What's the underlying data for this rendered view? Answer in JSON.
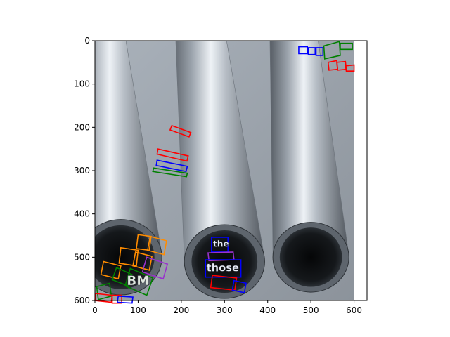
{
  "chart_data": {
    "type": "image",
    "title": "",
    "xlabel": "",
    "ylabel": "",
    "xlim": [
      0,
      630
    ],
    "ylim": [
      600,
      0
    ],
    "xticks": [
      0,
      100,
      200,
      300,
      400,
      500,
      600
    ],
    "yticks": [
      0,
      100,
      200,
      300,
      400,
      500,
      600
    ],
    "image_extent": [
      0,
      600,
      600,
      0
    ],
    "background_subject": "photo of grey steel pipes",
    "colors": {
      "red": "#ff0000",
      "blue": "#0000ff",
      "green": "#008000",
      "orange": "#ff8c00",
      "purple": "#9932cc"
    },
    "boxes": [
      {
        "color": "red",
        "pts": [
          [
            178,
            196
          ],
          [
            222,
            212
          ],
          [
            218,
            222
          ],
          [
            174,
            206
          ]
        ]
      },
      {
        "color": "red",
        "pts": [
          [
            146,
            250
          ],
          [
            216,
            266
          ],
          [
            213,
            278
          ],
          [
            144,
            262
          ]
        ]
      },
      {
        "color": "blue",
        "pts": [
          [
            144,
            276
          ],
          [
            214,
            290
          ],
          [
            211,
            302
          ],
          [
            142,
            288
          ]
        ]
      },
      {
        "color": "green",
        "pts": [
          [
            136,
            294
          ],
          [
            214,
            306
          ],
          [
            212,
            314
          ],
          [
            134,
            302
          ]
        ]
      },
      {
        "color": "blue",
        "pts": [
          [
            472,
            14
          ],
          [
            492,
            14
          ],
          [
            492,
            30
          ],
          [
            472,
            30
          ]
        ]
      },
      {
        "color": "blue",
        "pts": [
          [
            494,
            16
          ],
          [
            510,
            16
          ],
          [
            510,
            32
          ],
          [
            494,
            32
          ]
        ]
      },
      {
        "color": "blue",
        "pts": [
          [
            512,
            16
          ],
          [
            528,
            16
          ],
          [
            528,
            34
          ],
          [
            512,
            34
          ]
        ]
      },
      {
        "color": "green",
        "pts": [
          [
            530,
            12
          ],
          [
            566,
            2
          ],
          [
            568,
            34
          ],
          [
            532,
            42
          ]
        ]
      },
      {
        "color": "green",
        "pts": [
          [
            568,
            6
          ],
          [
            596,
            6
          ],
          [
            596,
            20
          ],
          [
            568,
            20
          ]
        ]
      },
      {
        "color": "red",
        "pts": [
          [
            540,
            50
          ],
          [
            560,
            46
          ],
          [
            562,
            66
          ],
          [
            542,
            68
          ]
        ]
      },
      {
        "color": "red",
        "pts": [
          [
            560,
            50
          ],
          [
            580,
            48
          ],
          [
            582,
            66
          ],
          [
            562,
            68
          ]
        ]
      },
      {
        "color": "red",
        "pts": [
          [
            580,
            58
          ],
          [
            600,
            56
          ],
          [
            600,
            70
          ],
          [
            582,
            70
          ]
        ]
      },
      {
        "color": "orange",
        "pts": [
          [
            100,
            448
          ],
          [
            130,
            452
          ],
          [
            126,
            484
          ],
          [
            96,
            480
          ]
        ]
      },
      {
        "color": "orange",
        "pts": [
          [
            128,
            452
          ],
          [
            166,
            462
          ],
          [
            160,
            494
          ],
          [
            122,
            484
          ]
        ]
      },
      {
        "color": "orange",
        "pts": [
          [
            60,
            478
          ],
          [
            100,
            484
          ],
          [
            96,
            520
          ],
          [
            56,
            514
          ]
        ]
      },
      {
        "color": "orange",
        "pts": [
          [
            94,
            488
          ],
          [
            132,
            498
          ],
          [
            126,
            530
          ],
          [
            88,
            520
          ]
        ]
      },
      {
        "color": "orange",
        "pts": [
          [
            20,
            510
          ],
          [
            60,
            520
          ],
          [
            54,
            550
          ],
          [
            14,
            540
          ]
        ]
      },
      {
        "color": "green",
        "pts": [
          [
            50,
            524
          ],
          [
            86,
            540
          ],
          [
            76,
            566
          ],
          [
            40,
            552
          ]
        ]
      },
      {
        "color": "green",
        "pts": [
          [
            82,
            526
          ],
          [
            134,
            548
          ],
          [
            120,
            588
          ],
          [
            70,
            566
          ]
        ]
      },
      {
        "color": "purple",
        "pts": [
          [
            120,
            500
          ],
          [
            168,
            516
          ],
          [
            158,
            550
          ],
          [
            110,
            534
          ]
        ]
      },
      {
        "color": "green",
        "pts": [
          [
            4,
            568
          ],
          [
            34,
            560
          ],
          [
            38,
            590
          ],
          [
            8,
            598
          ]
        ]
      },
      {
        "color": "red",
        "pts": [
          [
            2,
            584
          ],
          [
            40,
            588
          ],
          [
            38,
            604
          ],
          [
            0,
            600
          ]
        ]
      },
      {
        "color": "red",
        "pts": [
          [
            40,
            588
          ],
          [
            62,
            588
          ],
          [
            62,
            606
          ],
          [
            40,
            606
          ]
        ]
      },
      {
        "color": "blue",
        "pts": [
          [
            54,
            590
          ],
          [
            88,
            592
          ],
          [
            86,
            606
          ],
          [
            52,
            604
          ]
        ]
      },
      {
        "color": "blue",
        "pts": [
          [
            270,
            454
          ],
          [
            308,
            454
          ],
          [
            308,
            488
          ],
          [
            270,
            488
          ]
        ]
      },
      {
        "color": "purple",
        "pts": [
          [
            262,
            490
          ],
          [
            320,
            488
          ],
          [
            322,
            506
          ],
          [
            264,
            508
          ]
        ]
      },
      {
        "color": "blue",
        "pts": [
          [
            256,
            506
          ],
          [
            338,
            506
          ],
          [
            338,
            546
          ],
          [
            256,
            546
          ]
        ]
      },
      {
        "color": "red",
        "pts": [
          [
            272,
            542
          ],
          [
            328,
            548
          ],
          [
            324,
            576
          ],
          [
            268,
            570
          ]
        ]
      },
      {
        "color": "blue",
        "pts": [
          [
            322,
            554
          ],
          [
            350,
            560
          ],
          [
            346,
            582
          ],
          [
            318,
            576
          ]
        ]
      }
    ],
    "words": [
      {
        "text": "the",
        "x": 292,
        "y": 470,
        "size": 20,
        "color": "#e8eef8"
      },
      {
        "text": "those",
        "x": 296,
        "y": 526,
        "size": 24,
        "color": "#e8eef8"
      },
      {
        "text": "BM",
        "x": 100,
        "y": 556,
        "size": 30,
        "color": "#dfe6df"
      }
    ]
  }
}
